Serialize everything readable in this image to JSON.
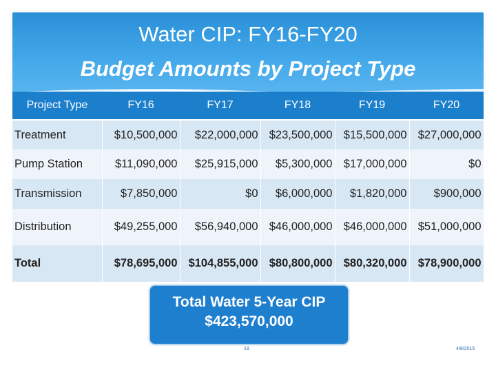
{
  "slide": {
    "title_line1": "Water CIP: FY16-FY20",
    "title_line2": "Budget Amounts by Project Type"
  },
  "table": {
    "headers": [
      "Project Type",
      "FY16",
      "FY17",
      "FY18",
      "FY19",
      "FY20"
    ],
    "rows": [
      {
        "label": "Treatment",
        "values": [
          "$10,500,000",
          "$22,000,000",
          "$23,500,000",
          "$15,500,000",
          "$27,000,000"
        ]
      },
      {
        "label": "Pump Station",
        "values": [
          "$11,090,000",
          "$25,915,000",
          "$5,300,000",
          "$17,000,000",
          "$0"
        ]
      },
      {
        "label": "Transmission",
        "values": [
          "$7,850,000",
          "$0",
          "$6,000,000",
          "$1,820,000",
          "$900,000"
        ]
      },
      {
        "label": "Distribution",
        "values": [
          "$49,255,000",
          "$56,940,000",
          "$46,000,000",
          "$46,000,000",
          "$51,000,000"
        ]
      },
      {
        "label": "Total",
        "values": [
          "$78,695,000",
          "$104,855,000",
          "$80,800,000",
          "$80,320,000",
          "$78,900,000"
        ]
      }
    ]
  },
  "callout": {
    "line1": "Total Water 5-Year CIP",
    "line2": "$423,570,000"
  },
  "footer": {
    "page_number": "18",
    "date": "4/8/2015"
  },
  "colors": {
    "header_blue": "#2a8fd6",
    "table_header": "#1c7fcc",
    "row_band_dark": "#d7e7f4",
    "row_band_light": "#eef4fa",
    "callout_blue": "#1f7fcf"
  }
}
